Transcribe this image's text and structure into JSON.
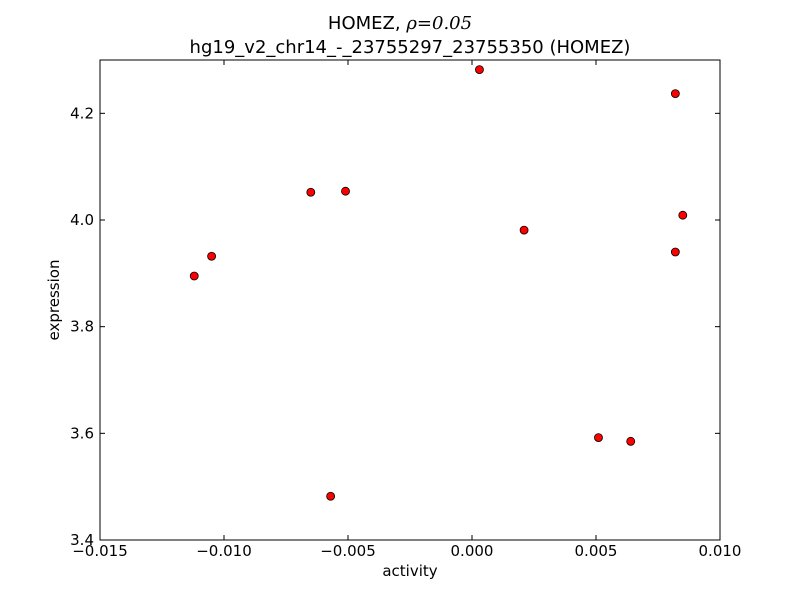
{
  "chart_data": {
    "type": "scatter",
    "title_prefix": "HOMEZ, ",
    "title_rho_symbol": "ρ",
    "title_rho_value": "=0.05",
    "subtitle": "hg19_v2_chr14_-_23755297_23755350 (HOMEZ)",
    "xlabel": "activity",
    "ylabel": "expression",
    "xlim": [
      -0.015,
      0.01
    ],
    "ylim": [
      3.4,
      4.3
    ],
    "xticks": [
      -0.015,
      -0.01,
      -0.005,
      0.0,
      0.005,
      0.01
    ],
    "xtick_labels": [
      "−0.015",
      "−0.010",
      "−0.005",
      "0.000",
      "0.005",
      "0.010"
    ],
    "yticks": [
      3.4,
      3.6,
      3.8,
      4.0,
      4.2
    ],
    "ytick_labels": [
      "3.4",
      "3.6",
      "3.8",
      "4.0",
      "4.2"
    ],
    "grid": false,
    "marker_color": "#ff0000",
    "marker_edge_color": "#000000",
    "points": [
      {
        "x": 0.0003,
        "y": 4.282
      },
      {
        "x": 0.0082,
        "y": 4.237
      },
      {
        "x": -0.0065,
        "y": 4.052
      },
      {
        "x": -0.0051,
        "y": 4.054
      },
      {
        "x": 0.0085,
        "y": 4.009
      },
      {
        "x": 0.0021,
        "y": 3.981
      },
      {
        "x": 0.0082,
        "y": 3.94
      },
      {
        "x": -0.0105,
        "y": 3.932
      },
      {
        "x": -0.0112,
        "y": 3.895
      },
      {
        "x": 0.0051,
        "y": 3.592
      },
      {
        "x": 0.0064,
        "y": 3.585
      },
      {
        "x": -0.0057,
        "y": 3.482
      }
    ]
  }
}
